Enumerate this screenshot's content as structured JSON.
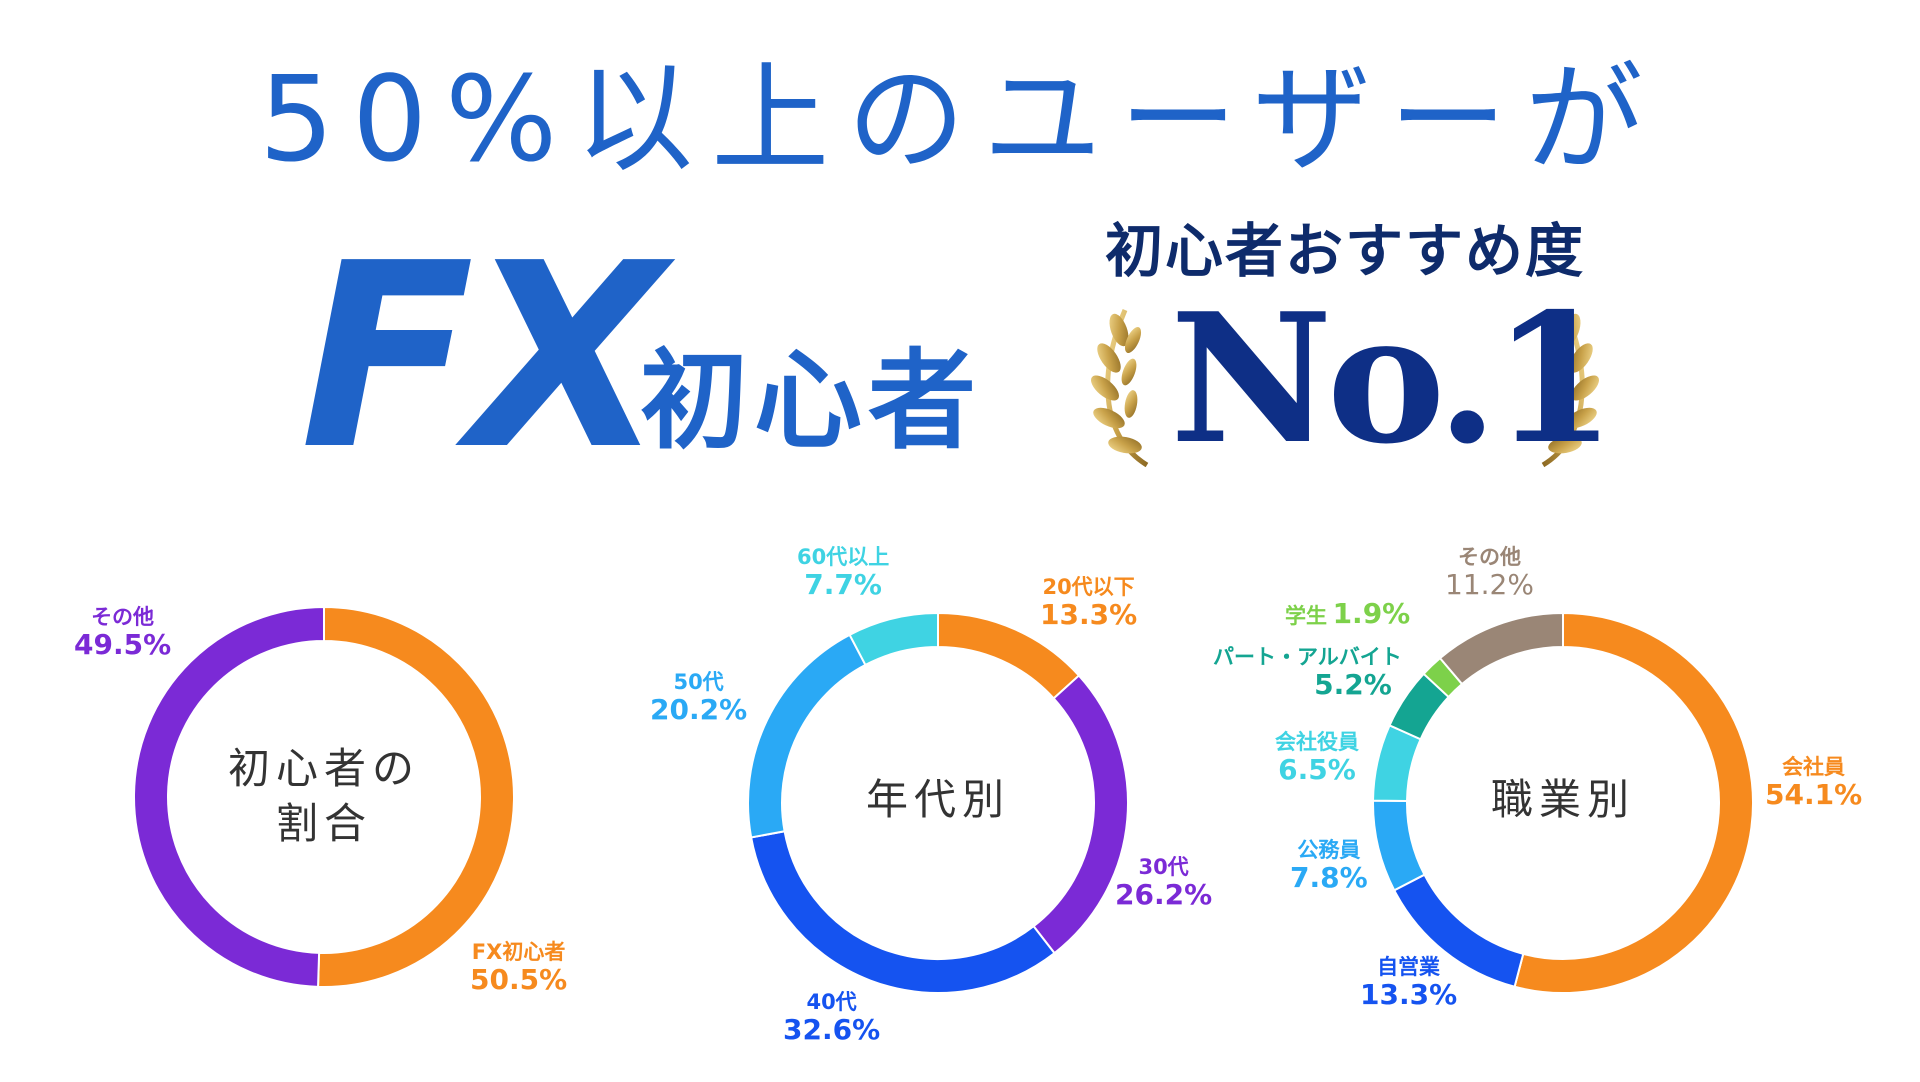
{
  "headline": "50%以上のユーザーが",
  "fx_big": "FX",
  "fx_sub": "初心者",
  "badge": {
    "caption": "初心者おすすめ度",
    "rank": "No.1"
  },
  "colors": {
    "headline_blue": "#1f63c8",
    "navy": "#0e2f86",
    "gold": "#c9a24a"
  },
  "chart_data": [
    {
      "type": "pie",
      "style": "donut",
      "center_label": [
        "初心者の",
        "割合"
      ],
      "series": [
        {
          "name": "FX初心者",
          "value": 50.5,
          "label": "50.5%",
          "color": "#f68a1e"
        },
        {
          "name": "その他",
          "value": 49.5,
          "label": "49.5%",
          "color": "#7b2ad6"
        }
      ]
    },
    {
      "type": "pie",
      "style": "donut",
      "center_label": [
        "年代別"
      ],
      "series": [
        {
          "name": "20代以下",
          "value": 13.3,
          "label": "13.3%",
          "color": "#f68a1e"
        },
        {
          "name": "30代",
          "value": 26.2,
          "label": "26.2%",
          "color": "#7b2ad6"
        },
        {
          "name": "40代",
          "value": 32.6,
          "label": "32.6%",
          "color": "#1553f0"
        },
        {
          "name": "50代",
          "value": 20.2,
          "label": "20.2%",
          "color": "#2aa9f5"
        },
        {
          "name": "60代以上",
          "value": 7.7,
          "label": "7.7%",
          "color": "#3fd3e3"
        }
      ]
    },
    {
      "type": "pie",
      "style": "donut",
      "center_label": [
        "職業別"
      ],
      "series": [
        {
          "name": "会社員",
          "value": 54.1,
          "label": "54.1%",
          "color": "#f68a1e"
        },
        {
          "name": "自営業",
          "value": 13.3,
          "label": "13.3%",
          "color": "#1553f0"
        },
        {
          "name": "公務員",
          "value": 7.8,
          "label": "7.8%",
          "color": "#2aa9f5"
        },
        {
          "name": "会社役員",
          "value": 6.5,
          "label": "6.5%",
          "color": "#3fd3e3"
        },
        {
          "name": "パート・アルバイト",
          "value": 5.2,
          "label": "5.2%",
          "color": "#14a592"
        },
        {
          "name": "学生",
          "value": 1.9,
          "label": "1.9%",
          "color": "#7dd14a"
        },
        {
          "name": "その他",
          "value": 11.2,
          "label": "11.2%",
          "color": "#9a8676"
        }
      ]
    }
  ]
}
